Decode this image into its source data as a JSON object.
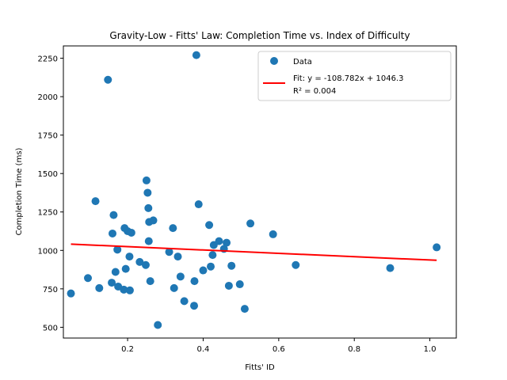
{
  "chart_data": {
    "type": "scatter",
    "title": "Gravity-Low - Fitts' Law: Completion Time vs. Index of Difficulty",
    "xlabel": "Fitts' ID",
    "ylabel": "Completion Time (ms)",
    "xlim": [
      0.03,
      1.07
    ],
    "ylim": [
      430,
      2330
    ],
    "xticks": [
      0.2,
      0.4,
      0.6,
      0.8,
      1.0
    ],
    "xtick_labels": [
      "0.2",
      "0.4",
      "0.6",
      "0.8",
      "1.0"
    ],
    "yticks": [
      500,
      750,
      1000,
      1250,
      1500,
      1750,
      2000,
      2250
    ],
    "ytick_labels": [
      "500",
      "750",
      "1000",
      "1250",
      "1500",
      "1750",
      "2000",
      "2250"
    ],
    "grid": false,
    "legend_position": "top-right",
    "colors": {
      "points": "#1f77b4",
      "fit_line": "#ff0000"
    },
    "series": [
      {
        "name": "Data",
        "type": "scatter",
        "points": [
          [
            0.05,
            720
          ],
          [
            0.095,
            820
          ],
          [
            0.115,
            1320
          ],
          [
            0.125,
            755
          ],
          [
            0.148,
            2110
          ],
          [
            0.158,
            790
          ],
          [
            0.16,
            1110
          ],
          [
            0.163,
            1230
          ],
          [
            0.168,
            860
          ],
          [
            0.173,
            1005
          ],
          [
            0.175,
            765
          ],
          [
            0.19,
            745
          ],
          [
            0.192,
            1145
          ],
          [
            0.195,
            880
          ],
          [
            0.2,
            1125
          ],
          [
            0.205,
            960
          ],
          [
            0.206,
            740
          ],
          [
            0.21,
            1115
          ],
          [
            0.232,
            925
          ],
          [
            0.248,
            905
          ],
          [
            0.25,
            1455
          ],
          [
            0.253,
            1375
          ],
          [
            0.255,
            1275
          ],
          [
            0.256,
            1060
          ],
          [
            0.257,
            1185
          ],
          [
            0.26,
            800
          ],
          [
            0.268,
            1195
          ],
          [
            0.28,
            515
          ],
          [
            0.31,
            990
          ],
          [
            0.32,
            1145
          ],
          [
            0.323,
            755
          ],
          [
            0.333,
            960
          ],
          [
            0.34,
            830
          ],
          [
            0.35,
            670
          ],
          [
            0.376,
            640
          ],
          [
            0.377,
            800
          ],
          [
            0.382,
            2270
          ],
          [
            0.388,
            1300
          ],
          [
            0.4,
            870
          ],
          [
            0.416,
            1165
          ],
          [
            0.42,
            895
          ],
          [
            0.425,
            970
          ],
          [
            0.428,
            1035
          ],
          [
            0.442,
            1060
          ],
          [
            0.455,
            1010
          ],
          [
            0.462,
            1050
          ],
          [
            0.468,
            770
          ],
          [
            0.475,
            900
          ],
          [
            0.497,
            780
          ],
          [
            0.51,
            620
          ],
          [
            0.525,
            1175
          ],
          [
            0.585,
            1105
          ],
          [
            0.645,
            905
          ],
          [
            0.895,
            885
          ],
          [
            1.018,
            1020
          ]
        ]
      },
      {
        "name": "Fit: y = -108.782x + 1046.3\nR² = 0.004",
        "type": "line",
        "slope": -108.782,
        "intercept": 1046.3,
        "x_range": [
          0.05,
          1.018
        ]
      }
    ],
    "legend": {
      "entries": [
        "Data",
        "Fit: y = -108.782x + 1046.3",
        "R² = 0.004"
      ]
    }
  }
}
